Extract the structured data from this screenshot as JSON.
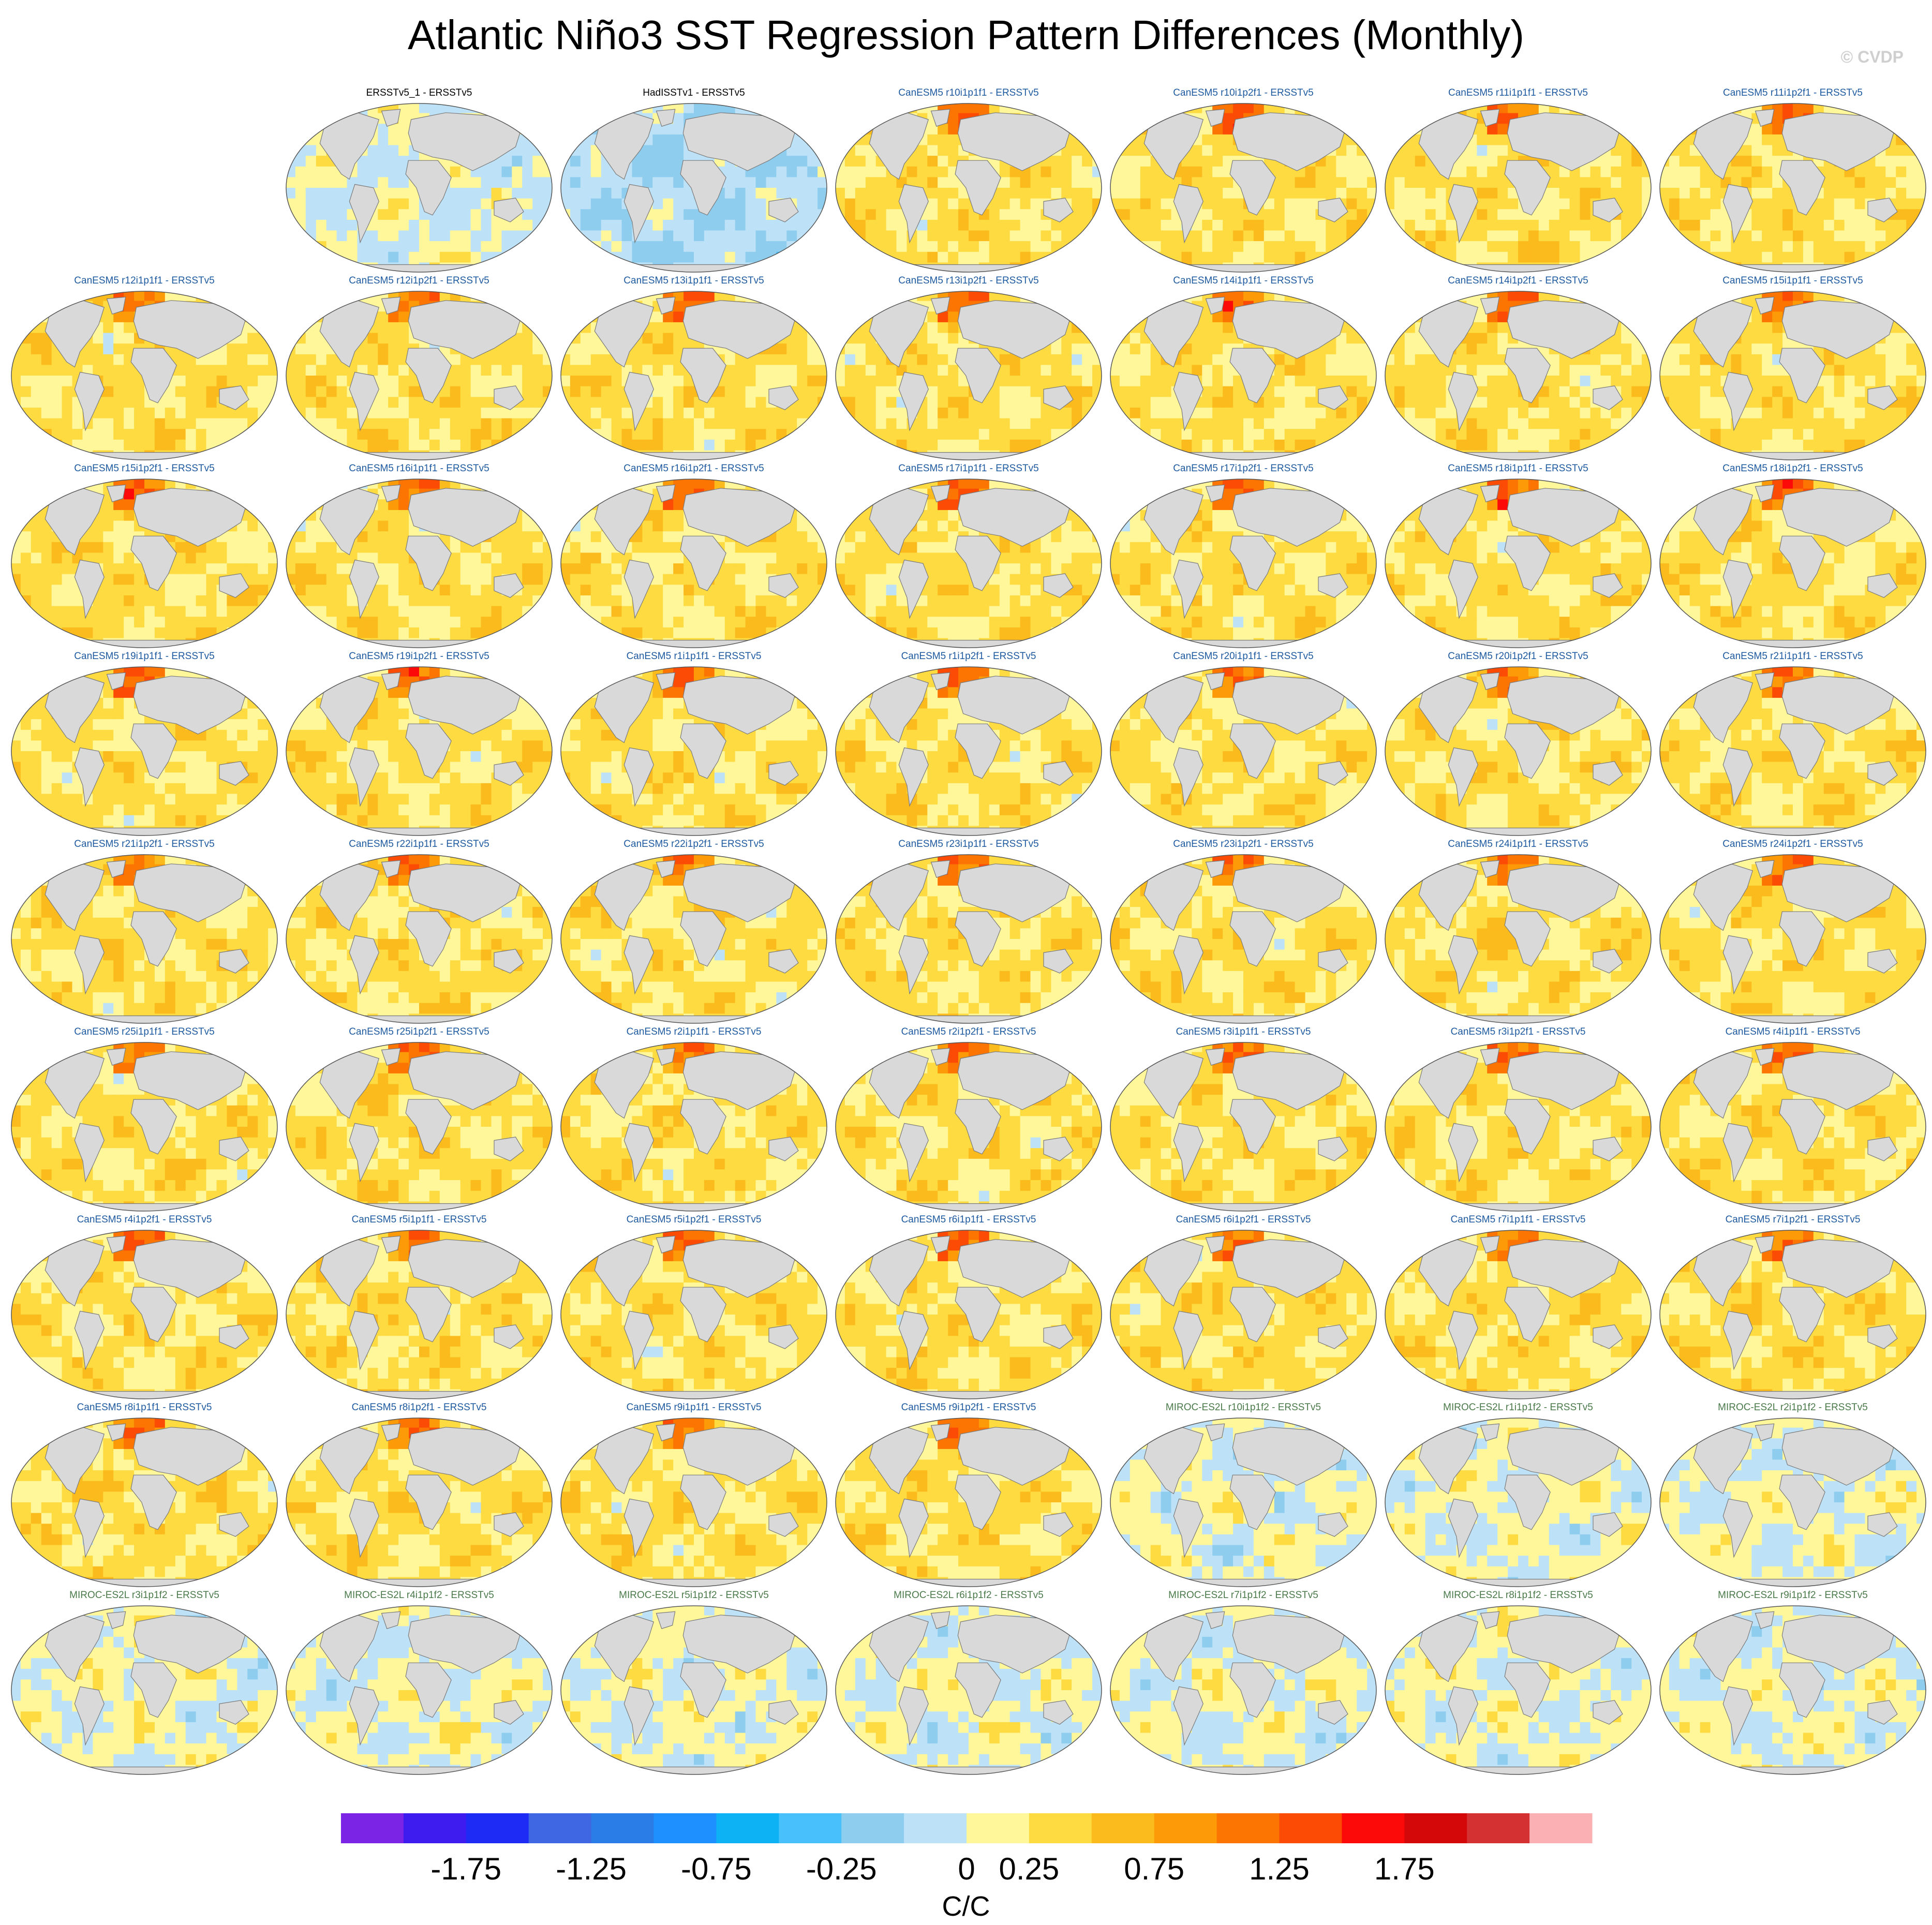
{
  "title": "Atlantic Niño3 SST Regression Pattern Differences (Monthly)",
  "watermark": "© CVDP",
  "colorbar": {
    "label": "C/C",
    "tick_labels": [
      "-1.75",
      "-1.25",
      "-0.75",
      "-0.25",
      "0",
      "0.25",
      "0.75",
      "1.25",
      "1.75"
    ],
    "colors": [
      "#7b24e6",
      "#3e1cf0",
      "#1e2bf5",
      "#3f66e3",
      "#2a7de6",
      "#1e90ff",
      "#0db2f5",
      "#47c0fb",
      "#8fcdee",
      "#bde2f7",
      "#fff79a",
      "#fddb41",
      "#fcbb1c",
      "#fc9a07",
      "#fc7503",
      "#fb4b04",
      "#fc0a0a",
      "#d40808",
      "#d43232",
      "#fbb0b3"
    ]
  },
  "label_colors": {
    "obs": "#000000",
    "CanESM5": "#1e5aa0",
    "MIROC-ES2L": "#4a7a4a"
  },
  "chart_data": {
    "type": "heatmap",
    "variable": "SST regression pattern difference",
    "units": "C/C",
    "color_levels": [
      -2.0,
      -1.75,
      -1.5,
      -1.25,
      -1.0,
      -0.75,
      -0.5,
      -0.25,
      0,
      0.25,
      0.5,
      0.75,
      1.0,
      1.25,
      1.5,
      1.75,
      2.0
    ],
    "panels": [
      {
        "label": "ERSSTv5_1 - ERSSTv5",
        "group": "obs",
        "row": 0,
        "col": 1,
        "seed": 11
      },
      {
        "label": "HadISSTv1 - ERSSTv5",
        "group": "obs",
        "row": 0,
        "col": 2,
        "seed": 23
      },
      {
        "label": "CanESM5 r10i1p1f1 - ERSSTv5",
        "group": "CanESM5",
        "row": 0,
        "col": 3,
        "seed": 31
      },
      {
        "label": "CanESM5 r10i1p2f1 - ERSSTv5",
        "group": "CanESM5",
        "row": 0,
        "col": 4,
        "seed": 37
      },
      {
        "label": "CanESM5 r11i1p1f1 - ERSSTv5",
        "group": "CanESM5",
        "row": 0,
        "col": 5,
        "seed": 41
      },
      {
        "label": "CanESM5 r11i1p2f1 - ERSSTv5",
        "group": "CanESM5",
        "row": 0,
        "col": 6,
        "seed": 43
      },
      {
        "label": "CanESM5 r12i1p1f1 - ERSSTv5",
        "group": "CanESM5",
        "row": 1,
        "col": 0,
        "seed": 47
      },
      {
        "label": "CanESM5 r12i1p2f1 - ERSSTv5",
        "group": "CanESM5",
        "row": 1,
        "col": 1,
        "seed": 53
      },
      {
        "label": "CanESM5 r13i1p1f1 - ERSSTv5",
        "group": "CanESM5",
        "row": 1,
        "col": 2,
        "seed": 59
      },
      {
        "label": "CanESM5 r13i1p2f1 - ERSSTv5",
        "group": "CanESM5",
        "row": 1,
        "col": 3,
        "seed": 61
      },
      {
        "label": "CanESM5 r14i1p1f1 - ERSSTv5",
        "group": "CanESM5",
        "row": 1,
        "col": 4,
        "seed": 67
      },
      {
        "label": "CanESM5 r14i1p2f1 - ERSSTv5",
        "group": "CanESM5",
        "row": 1,
        "col": 5,
        "seed": 71
      },
      {
        "label": "CanESM5 r15i1p1f1 - ERSSTv5",
        "group": "CanESM5",
        "row": 1,
        "col": 6,
        "seed": 73
      },
      {
        "label": "CanESM5 r15i1p2f1 - ERSSTv5",
        "group": "CanESM5",
        "row": 2,
        "col": 0,
        "seed": 79
      },
      {
        "label": "CanESM5 r16i1p1f1 - ERSSTv5",
        "group": "CanESM5",
        "row": 2,
        "col": 1,
        "seed": 83
      },
      {
        "label": "CanESM5 r16i1p2f1 - ERSSTv5",
        "group": "CanESM5",
        "row": 2,
        "col": 2,
        "seed": 89
      },
      {
        "label": "CanESM5 r17i1p1f1 - ERSSTv5",
        "group": "CanESM5",
        "row": 2,
        "col": 3,
        "seed": 97
      },
      {
        "label": "CanESM5 r17i1p2f1 - ERSSTv5",
        "group": "CanESM5",
        "row": 2,
        "col": 4,
        "seed": 101
      },
      {
        "label": "CanESM5 r18i1p1f1 - ERSSTv5",
        "group": "CanESM5",
        "row": 2,
        "col": 5,
        "seed": 103
      },
      {
        "label": "CanESM5 r18i1p2f1 - ERSSTv5",
        "group": "CanESM5",
        "row": 2,
        "col": 6,
        "seed": 107
      },
      {
        "label": "CanESM5 r19i1p1f1 - ERSSTv5",
        "group": "CanESM5",
        "row": 3,
        "col": 0,
        "seed": 109
      },
      {
        "label": "CanESM5 r19i1p2f1 - ERSSTv5",
        "group": "CanESM5",
        "row": 3,
        "col": 1,
        "seed": 113
      },
      {
        "label": "CanESM5 r1i1p1f1 - ERSSTv5",
        "group": "CanESM5",
        "row": 3,
        "col": 2,
        "seed": 127
      },
      {
        "label": "CanESM5 r1i1p2f1 - ERSSTv5",
        "group": "CanESM5",
        "row": 3,
        "col": 3,
        "seed": 131
      },
      {
        "label": "CanESM5 r20i1p1f1 - ERSSTv5",
        "group": "CanESM5",
        "row": 3,
        "col": 4,
        "seed": 137
      },
      {
        "label": "CanESM5 r20i1p2f1 - ERSSTv5",
        "group": "CanESM5",
        "row": 3,
        "col": 5,
        "seed": 139
      },
      {
        "label": "CanESM5 r21i1p1f1 - ERSSTv5",
        "group": "CanESM5",
        "row": 3,
        "col": 6,
        "seed": 149
      },
      {
        "label": "CanESM5 r21i1p2f1 - ERSSTv5",
        "group": "CanESM5",
        "row": 4,
        "col": 0,
        "seed": 151
      },
      {
        "label": "CanESM5 r22i1p1f1 - ERSSTv5",
        "group": "CanESM5",
        "row": 4,
        "col": 1,
        "seed": 157
      },
      {
        "label": "CanESM5 r22i1p2f1 - ERSSTv5",
        "group": "CanESM5",
        "row": 4,
        "col": 2,
        "seed": 163
      },
      {
        "label": "CanESM5 r23i1p1f1 - ERSSTv5",
        "group": "CanESM5",
        "row": 4,
        "col": 3,
        "seed": 167
      },
      {
        "label": "CanESM5 r23i1p2f1 - ERSSTv5",
        "group": "CanESM5",
        "row": 4,
        "col": 4,
        "seed": 173
      },
      {
        "label": "CanESM5 r24i1p1f1 - ERSSTv5",
        "group": "CanESM5",
        "row": 4,
        "col": 5,
        "seed": 179
      },
      {
        "label": "CanESM5 r24i1p2f1 - ERSSTv5",
        "group": "CanESM5",
        "row": 4,
        "col": 6,
        "seed": 181
      },
      {
        "label": "CanESM5 r25i1p1f1 - ERSSTv5",
        "group": "CanESM5",
        "row": 5,
        "col": 0,
        "seed": 191
      },
      {
        "label": "CanESM5 r25i1p2f1 - ERSSTv5",
        "group": "CanESM5",
        "row": 5,
        "col": 1,
        "seed": 193
      },
      {
        "label": "CanESM5 r2i1p1f1 - ERSSTv5",
        "group": "CanESM5",
        "row": 5,
        "col": 2,
        "seed": 197
      },
      {
        "label": "CanESM5 r2i1p2f1 - ERSSTv5",
        "group": "CanESM5",
        "row": 5,
        "col": 3,
        "seed": 199
      },
      {
        "label": "CanESM5 r3i1p1f1 - ERSSTv5",
        "group": "CanESM5",
        "row": 5,
        "col": 4,
        "seed": 211
      },
      {
        "label": "CanESM5 r3i1p2f1 - ERSSTv5",
        "group": "CanESM5",
        "row": 5,
        "col": 5,
        "seed": 223
      },
      {
        "label": "CanESM5 r4i1p1f1 - ERSSTv5",
        "group": "CanESM5",
        "row": 5,
        "col": 6,
        "seed": 227
      },
      {
        "label": "CanESM5 r4i1p2f1 - ERSSTv5",
        "group": "CanESM5",
        "row": 6,
        "col": 0,
        "seed": 229
      },
      {
        "label": "CanESM5 r5i1p1f1 - ERSSTv5",
        "group": "CanESM5",
        "row": 6,
        "col": 1,
        "seed": 233
      },
      {
        "label": "CanESM5 r5i1p2f1 - ERSSTv5",
        "group": "CanESM5",
        "row": 6,
        "col": 2,
        "seed": 239
      },
      {
        "label": "CanESM5 r6i1p1f1 - ERSSTv5",
        "group": "CanESM5",
        "row": 6,
        "col": 3,
        "seed": 241
      },
      {
        "label": "CanESM5 r6i1p2f1 - ERSSTv5",
        "group": "CanESM5",
        "row": 6,
        "col": 4,
        "seed": 251
      },
      {
        "label": "CanESM5 r7i1p1f1 - ERSSTv5",
        "group": "CanESM5",
        "row": 6,
        "col": 5,
        "seed": 257
      },
      {
        "label": "CanESM5 r7i1p2f1 - ERSSTv5",
        "group": "CanESM5",
        "row": 6,
        "col": 6,
        "seed": 263
      },
      {
        "label": "CanESM5 r8i1p1f1 - ERSSTv5",
        "group": "CanESM5",
        "row": 7,
        "col": 0,
        "seed": 269
      },
      {
        "label": "CanESM5 r8i1p2f1 - ERSSTv5",
        "group": "CanESM5",
        "row": 7,
        "col": 1,
        "seed": 271
      },
      {
        "label": "CanESM5 r9i1p1f1 - ERSSTv5",
        "group": "CanESM5",
        "row": 7,
        "col": 2,
        "seed": 277
      },
      {
        "label": "CanESM5 r9i1p2f1 - ERSSTv5",
        "group": "CanESM5",
        "row": 7,
        "col": 3,
        "seed": 281
      },
      {
        "label": "MIROC-ES2L r10i1p1f2 - ERSSTv5",
        "group": "MIROC-ES2L",
        "row": 7,
        "col": 4,
        "seed": 283
      },
      {
        "label": "MIROC-ES2L r1i1p1f2 - ERSSTv5",
        "group": "MIROC-ES2L",
        "row": 7,
        "col": 5,
        "seed": 293
      },
      {
        "label": "MIROC-ES2L r2i1p1f2 - ERSSTv5",
        "group": "MIROC-ES2L",
        "row": 7,
        "col": 6,
        "seed": 307
      },
      {
        "label": "MIROC-ES2L r3i1p1f2 - ERSSTv5",
        "group": "MIROC-ES2L",
        "row": 8,
        "col": 0,
        "seed": 311
      },
      {
        "label": "MIROC-ES2L r4i1p1f2 - ERSSTv5",
        "group": "MIROC-ES2L",
        "row": 8,
        "col": 1,
        "seed": 313
      },
      {
        "label": "MIROC-ES2L r5i1p1f2 - ERSSTv5",
        "group": "MIROC-ES2L",
        "row": 8,
        "col": 2,
        "seed": 317
      },
      {
        "label": "MIROC-ES2L r6i1p1f2 - ERSSTv5",
        "group": "MIROC-ES2L",
        "row": 8,
        "col": 3,
        "seed": 331
      },
      {
        "label": "MIROC-ES2L r7i1p1f2 - ERSSTv5",
        "group": "MIROC-ES2L",
        "row": 8,
        "col": 4,
        "seed": 337
      },
      {
        "label": "MIROC-ES2L r8i1p1f2 - ERSSTv5",
        "group": "MIROC-ES2L",
        "row": 8,
        "col": 5,
        "seed": 347
      },
      {
        "label": "MIROC-ES2L r9i1p1f2 - ERSSTv5",
        "group": "MIROC-ES2L",
        "row": 8,
        "col": 6,
        "seed": 349
      }
    ]
  }
}
